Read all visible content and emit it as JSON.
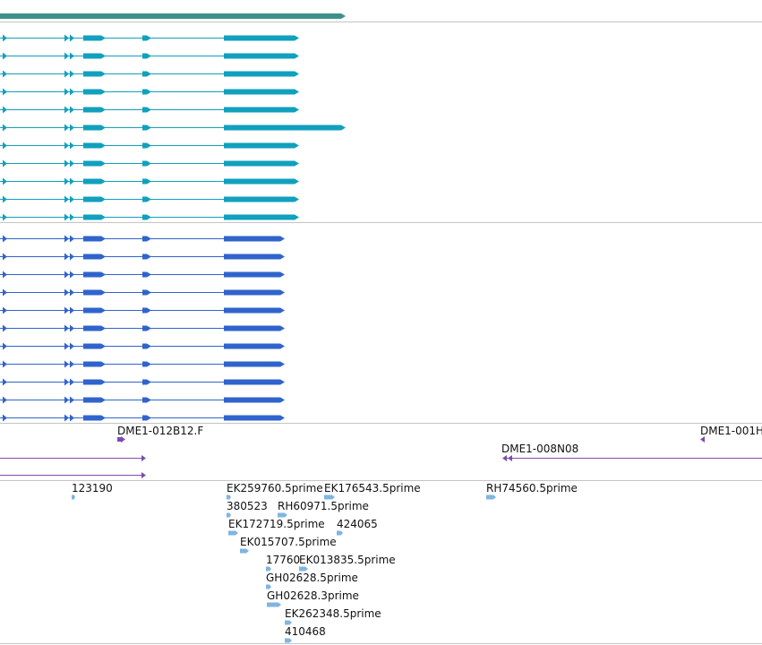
{
  "colors": {
    "gene": "#3d8f8c",
    "transcript_track_a": "#11a0bd",
    "transcript_track_b": "#3064cc",
    "clone": "#7a4db0",
    "est": "#7fb6e0",
    "separator": "#c4c4c4"
  },
  "tracks": {
    "gene": {
      "name": "gene-track"
    },
    "transcripts_a": {
      "name": "transcript-track-a",
      "count": 11,
      "long_row": 5
    },
    "transcripts_b": {
      "name": "transcript-track-b",
      "count": 11
    },
    "clones": {
      "items": [
        {
          "label": "DME1-012B12.F",
          "strand": "+"
        },
        {
          "label": "DME1-008N08",
          "strand": "-"
        },
        {
          "label": "DME1-001H",
          "strand": "-"
        }
      ]
    },
    "ests": {
      "items": [
        {
          "label": "123190"
        },
        {
          "label": "EK259760.5prime"
        },
        {
          "label": "EK176543.5prime"
        },
        {
          "label": "RH74560.5prime"
        },
        {
          "label": "380523"
        },
        {
          "label": "RH60971.5prime"
        },
        {
          "label": "EK172719.5prime"
        },
        {
          "label": "424065"
        },
        {
          "label": "EK015707.5prime"
        },
        {
          "label": "17760"
        },
        {
          "label": "EK013835.5prime"
        },
        {
          "label": "GH02628.5prime"
        },
        {
          "label": "GH02628.3prime"
        },
        {
          "label": "EK262348.5prime"
        },
        {
          "label": "410468"
        }
      ]
    }
  }
}
